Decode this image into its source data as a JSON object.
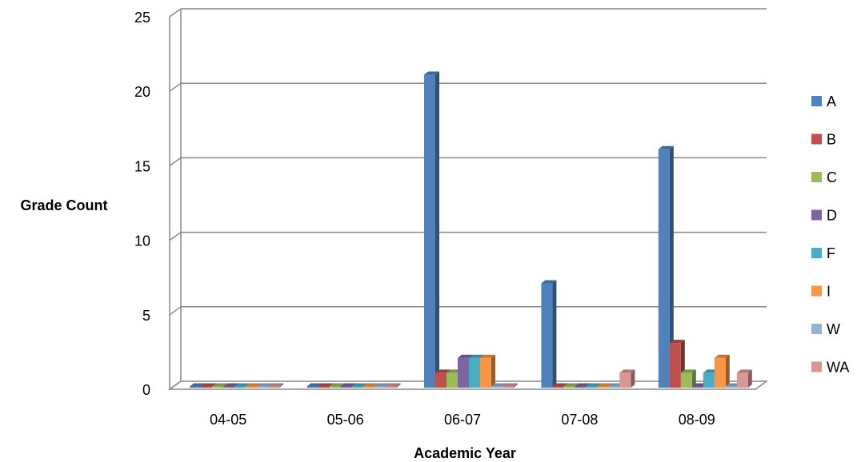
{
  "chart_data": {
    "type": "bar",
    "title": "",
    "xlabel": "Academic Year",
    "ylabel": "Grade Count",
    "categories": [
      "04-05",
      "05-06",
      "06-07",
      "07-08",
      "08-09"
    ],
    "ylim": [
      0,
      25
    ],
    "yticks": [
      "0",
      "5",
      "10",
      "15",
      "20",
      "25"
    ],
    "grid": true,
    "legend_position": "right",
    "series": [
      {
        "name": "A",
        "color": "#4F81BD",
        "values": [
          0,
          0,
          21,
          7,
          16
        ]
      },
      {
        "name": "B",
        "color": "#C0504D",
        "values": [
          0,
          0,
          1,
          0,
          3
        ]
      },
      {
        "name": "C",
        "color": "#9BBB59",
        "values": [
          0,
          0,
          1,
          0,
          1
        ]
      },
      {
        "name": "D",
        "color": "#8064A2",
        "values": [
          0,
          0,
          2,
          0,
          0
        ]
      },
      {
        "name": "F",
        "color": "#4BACC6",
        "values": [
          0,
          0,
          2,
          0,
          1
        ]
      },
      {
        "name": "I",
        "color": "#F79646",
        "values": [
          0,
          0,
          2,
          0,
          2
        ]
      },
      {
        "name": "W",
        "color": "#95B3D7",
        "values": [
          0,
          0,
          0,
          0,
          0
        ]
      },
      {
        "name": "WA",
        "color": "#D99694",
        "values": [
          0,
          0,
          0,
          1,
          1
        ]
      }
    ]
  }
}
